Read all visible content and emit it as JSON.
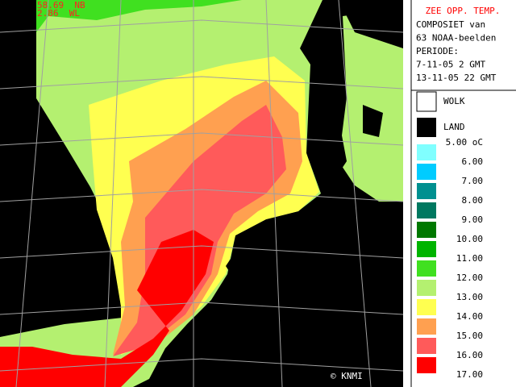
{
  "map": {
    "coords": [
      "58.69  NB",
      "2.86  WL"
    ],
    "credit": "© KNMI"
  },
  "panel": {
    "title": "ZEE OPP. TEMP.",
    "lines": [
      "COMPOSIET van",
      "63 NOAA-beelden",
      "PERIODE:",
      " 7-11-05  2 GMT",
      "13-11-05 22 GMT"
    ]
  },
  "legend": {
    "cloud": "WOLK",
    "land": "LAND",
    "labels": [
      "5.00 oC",
      "6.00",
      "7.00",
      "8.00",
      "9.00",
      "10.00",
      "11.00",
      "12.00",
      "13.00",
      "14.00",
      "15.00",
      "16.00",
      "17.00"
    ],
    "colors": [
      "#80ffff",
      "#00ccff",
      "#009090",
      "#007860",
      "#007800",
      "#00b400",
      "#40e020",
      "#b4f070",
      "#ffff50",
      "#ffa050",
      "#ff5a5a",
      "#ff0000",
      "#800000"
    ]
  }
}
